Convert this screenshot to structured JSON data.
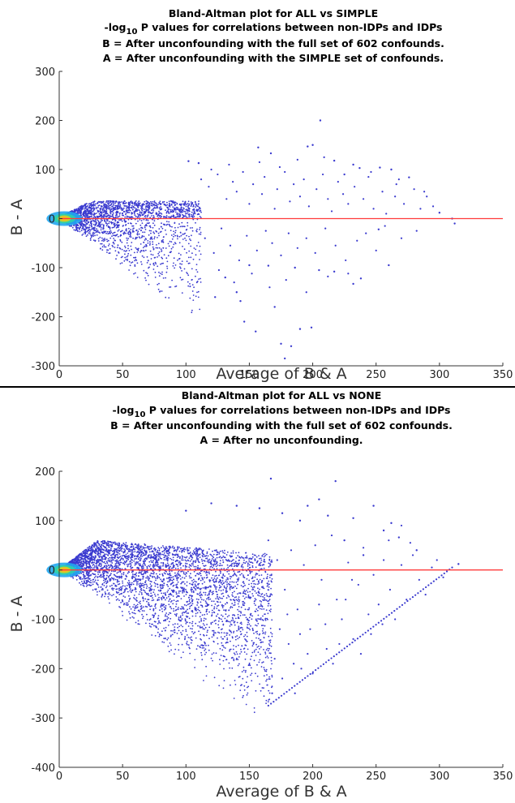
{
  "chart_data": [
    {
      "type": "scatter",
      "title_lines": [
        "Bland-Altman plot for ALL vs SIMPLE",
        "-log10 P values for correlations between non-IDPs and IDPs",
        "B = After unconfounding with the full set of 602 confounds.",
        "A = After unconfounding with the SIMPLE set of confounds."
      ],
      "xlabel": "Average of B & A",
      "ylabel": "B - A",
      "xlim": [
        0,
        350
      ],
      "ylim": [
        -300,
        300
      ],
      "xticks": [
        0,
        50,
        100,
        150,
        200,
        250,
        300,
        350
      ],
      "yticks": [
        -300,
        -200,
        -100,
        0,
        100,
        200,
        300
      ],
      "reference_line_y": 0,
      "marker_color": "#3a3acf",
      "reference_color": "#ff3b3b",
      "density_colormap": [
        "#3a3acf",
        "#22a7f0",
        "#2fd3a8",
        "#d8d01e",
        "#ffb020"
      ],
      "outliers": [
        [
          206,
          200
        ],
        [
          200,
          150
        ],
        [
          196,
          147
        ],
        [
          157,
          145
        ],
        [
          167,
          133
        ],
        [
          102,
          117
        ],
        [
          110,
          113
        ],
        [
          217,
          118
        ],
        [
          232,
          110
        ],
        [
          237,
          103
        ],
        [
          253,
          104
        ],
        [
          262,
          100
        ],
        [
          276,
          84
        ],
        [
          225,
          90
        ],
        [
          300,
          12
        ],
        [
          310,
          0
        ],
        [
          312,
          -10
        ],
        [
          252,
          -22
        ],
        [
          232,
          -133
        ],
        [
          238,
          -122
        ],
        [
          205,
          -105
        ],
        [
          217,
          -108
        ],
        [
          186,
          -100
        ],
        [
          165,
          -96
        ],
        [
          140,
          -150
        ],
        [
          155,
          -230
        ],
        [
          175,
          -255
        ],
        [
          178,
          -285
        ],
        [
          190,
          -225
        ],
        [
          183,
          -260
        ],
        [
          146,
          -210
        ],
        [
          170,
          -180
        ],
        [
          123,
          -160
        ],
        [
          150,
          -95
        ],
        [
          260,
          -95
        ],
        [
          199,
          -222
        ],
        [
          143,
          -168
        ],
        [
          131,
          -120
        ]
      ],
      "background_points": [
        [
          112,
          80
        ],
        [
          118,
          65
        ],
        [
          125,
          90
        ],
        [
          132,
          40
        ],
        [
          137,
          75
        ],
        [
          140,
          55
        ],
        [
          145,
          95
        ],
        [
          150,
          30
        ],
        [
          153,
          70
        ],
        [
          160,
          50
        ],
        [
          162,
          85
        ],
        [
          170,
          20
        ],
        [
          172,
          60
        ],
        [
          178,
          95
        ],
        [
          182,
          35
        ],
        [
          185,
          70
        ],
        [
          190,
          45
        ],
        [
          193,
          80
        ],
        [
          197,
          25
        ],
        [
          203,
          60
        ],
        [
          208,
          90
        ],
        [
          212,
          40
        ],
        [
          215,
          15
        ],
        [
          220,
          75
        ],
        [
          224,
          50
        ],
        [
          228,
          30
        ],
        [
          233,
          65
        ],
        [
          240,
          40
        ],
        [
          244,
          85
        ],
        [
          248,
          20
        ],
        [
          255,
          55
        ],
        [
          258,
          10
        ],
        [
          265,
          45
        ],
        [
          268,
          80
        ],
        [
          272,
          30
        ],
        [
          280,
          60
        ],
        [
          285,
          20
        ],
        [
          290,
          45
        ],
        [
          295,
          25
        ],
        [
          115,
          -40
        ],
        [
          122,
          -70
        ],
        [
          128,
          -20
        ],
        [
          135,
          -55
        ],
        [
          142,
          -85
        ],
        [
          148,
          -35
        ],
        [
          156,
          -65
        ],
        [
          163,
          -25
        ],
        [
          168,
          -50
        ],
        [
          175,
          -75
        ],
        [
          181,
          -30
        ],
        [
          188,
          -60
        ],
        [
          195,
          -40
        ],
        [
          202,
          -70
        ],
        [
          210,
          -20
        ],
        [
          218,
          -55
        ],
        [
          226,
          -85
        ],
        [
          235,
          -45
        ],
        [
          242,
          -30
        ],
        [
          250,
          -65
        ],
        [
          257,
          -15
        ],
        [
          270,
          -40
        ],
        [
          282,
          -25
        ],
        [
          120,
          100
        ],
        [
          134,
          110
        ],
        [
          158,
          115
        ],
        [
          174,
          105
        ],
        [
          188,
          120
        ],
        [
          209,
          125
        ],
        [
          246,
          95
        ],
        [
          266,
          70
        ],
        [
          288,
          55
        ],
        [
          126,
          -105
        ],
        [
          138,
          -130
        ],
        [
          152,
          -112
        ],
        [
          166,
          -140
        ],
        [
          179,
          -125
        ],
        [
          195,
          -150
        ],
        [
          212,
          -118
        ],
        [
          228,
          -112
        ]
      ],
      "core_shape": "fan-shaped cloud from x=0 widening to x~110 (upper bound y~+40, lower boundary diagonal down to y~-215 at x~108)"
    },
    {
      "type": "scatter",
      "title_lines": [
        "Bland-Altman plot for ALL vs NONE",
        "-log10 P values for correlations between non-IDPs and IDPs",
        "B = After unconfounding with the full set of 602 confounds.",
        "A = After no unconfounding."
      ],
      "xlabel": "Average of B & A",
      "ylabel": "B - A",
      "xlim": [
        0,
        350
      ],
      "ylim": [
        -400,
        200
      ],
      "xticks": [
        0,
        50,
        100,
        150,
        200,
        250,
        300,
        350
      ],
      "yticks": [
        -400,
        -300,
        -200,
        -100,
        0,
        100,
        200
      ],
      "reference_line_y": 0,
      "marker_color": "#3a3acf",
      "reference_color": "#ff3b3b",
      "density_colormap": [
        "#3a3acf",
        "#22a7f0",
        "#2fd3a8",
        "#d8d01e",
        "#ffb020"
      ],
      "outliers": [
        [
          167,
          185
        ],
        [
          218,
          180
        ],
        [
          205,
          143
        ],
        [
          196,
          130
        ],
        [
          248,
          130
        ],
        [
          212,
          110
        ],
        [
          262,
          95
        ],
        [
          268,
          66
        ],
        [
          282,
          40
        ],
        [
          240,
          30
        ],
        [
          315,
          12
        ],
        [
          100,
          120
        ],
        [
          120,
          135
        ],
        [
          140,
          130
        ],
        [
          158,
          125
        ],
        [
          176,
          115
        ],
        [
          232,
          105
        ],
        [
          256,
          80
        ],
        [
          190,
          100
        ],
        [
          225,
          60
        ]
      ],
      "background_points": [
        [
          165,
          60
        ],
        [
          172,
          20
        ],
        [
          178,
          -40
        ],
        [
          183,
          40
        ],
        [
          188,
          -80
        ],
        [
          193,
          10
        ],
        [
          198,
          -120
        ],
        [
          202,
          50
        ],
        [
          207,
          -20
        ],
        [
          211,
          -160
        ],
        [
          215,
          70
        ],
        [
          219,
          -60
        ],
        [
          223,
          -100
        ],
        [
          228,
          15
        ],
        [
          232,
          -140
        ],
        [
          236,
          -30
        ],
        [
          240,
          45
        ],
        [
          244,
          -90
        ],
        [
          248,
          -10
        ],
        [
          252,
          -70
        ],
        [
          256,
          20
        ],
        [
          261,
          -40
        ],
        [
          265,
          -100
        ],
        [
          270,
          10
        ],
        [
          274,
          -60
        ],
        [
          279,
          30
        ],
        [
          284,
          -20
        ],
        [
          289,
          -50
        ],
        [
          294,
          5
        ],
        [
          170,
          -180
        ],
        [
          176,
          -220
        ],
        [
          181,
          -150
        ],
        [
          186,
          -250
        ],
        [
          191,
          -200
        ],
        [
          196,
          -170
        ],
        [
          168,
          -250
        ],
        [
          174,
          -120
        ],
        [
          180,
          -90
        ],
        [
          185,
          -190
        ],
        [
          190,
          -130
        ],
        [
          200,
          -210
        ],
        [
          205,
          -70
        ],
        [
          210,
          -110
        ],
        [
          216,
          -190
        ],
        [
          221,
          -150
        ],
        [
          226,
          -60
        ],
        [
          231,
          -20
        ],
        [
          238,
          -170
        ],
        [
          246,
          -130
        ],
        [
          255,
          -110
        ],
        [
          260,
          60
        ],
        [
          270,
          90
        ],
        [
          277,
          55
        ],
        [
          298,
          20
        ],
        [
          303,
          -15
        ]
      ],
      "diagonal_line": [
        [
          165,
          -275
        ],
        [
          310,
          5
        ]
      ],
      "core_shape": "triangular cloud from x=0, upper bound rising to y~+60 near x=30 then above zero, lower boundary diagonal down to y~-320 at x~160"
    }
  ]
}
